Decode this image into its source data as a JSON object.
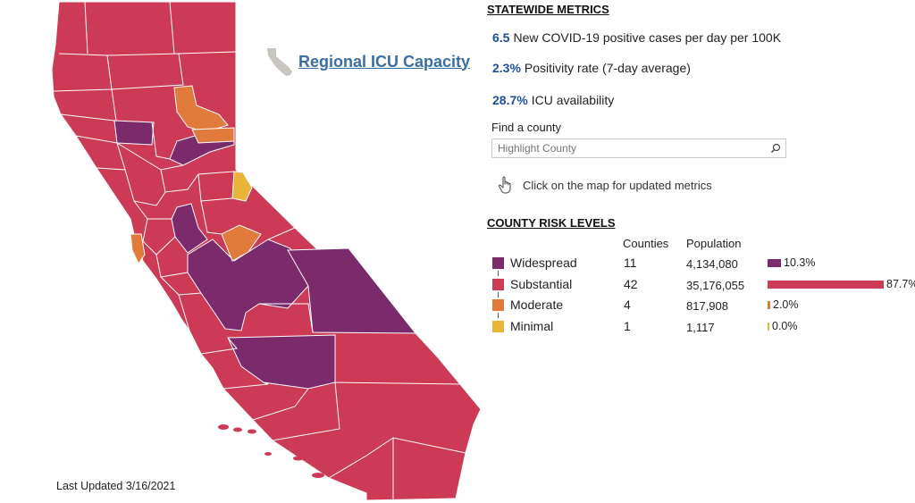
{
  "map": {
    "last_updated": "Last Updated 3/16/2021",
    "colors": {
      "widespread": "#7b2a6b",
      "substantial": "#cc3a55",
      "moderate": "#e07b3c",
      "minimal": "#e8b53a",
      "border": "#ffffff",
      "icu_icon": "#c8c4be"
    }
  },
  "icu_link": {
    "label": "Regional ICU Capacity"
  },
  "statewide": {
    "heading": "STATEWIDE METRICS",
    "metrics": [
      {
        "value": "6.5",
        "text": "New COVID-19 positive cases per day per 100K"
      },
      {
        "value": "2.3%",
        "text": "Positivity rate (7-day average)"
      },
      {
        "value": "28.7%",
        "text": "ICU availability"
      }
    ]
  },
  "find": {
    "label": "Find a county",
    "placeholder": "Highlight County",
    "hint": "Click on the map for updated metrics"
  },
  "risk": {
    "heading": "COUNTY RISK LEVELS",
    "col_counties": "Counties",
    "col_population": "Population",
    "rows": [
      {
        "level": "Widespread",
        "counties": "11",
        "population": "4,134,080",
        "share": 10.3,
        "share_label": "10.3%",
        "color": "#7b2a6b"
      },
      {
        "level": "Substantial",
        "counties": "42",
        "population": "35,176,055",
        "share": 87.7,
        "share_label": "87.7%",
        "color": "#cc3a55"
      },
      {
        "level": "Moderate",
        "counties": "4",
        "population": "817,908",
        "share": 2.0,
        "share_label": "2.0%",
        "color": "#e07b3c"
      },
      {
        "level": "Minimal",
        "counties": "1",
        "population": "1,117",
        "share": 0.0,
        "share_label": "0.0%",
        "color": "#e8b53a"
      }
    ]
  }
}
